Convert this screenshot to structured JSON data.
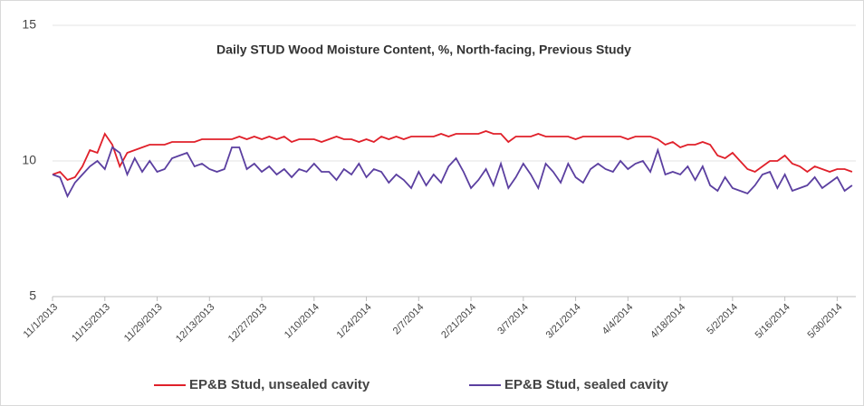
{
  "chart_data": {
    "type": "line",
    "title": "Daily STUD Wood Moisture Content, %,  North-facing, Previous Study",
    "x": [
      "11/1/2013",
      "11/3/2013",
      "11/5/2013",
      "11/7/2013",
      "11/9/2013",
      "11/11/2013",
      "11/13/2013",
      "11/15/2013",
      "11/17/2013",
      "11/19/2013",
      "11/21/2013",
      "11/23/2013",
      "11/25/2013",
      "11/27/2013",
      "11/29/2013",
      "12/1/2013",
      "12/3/2013",
      "12/5/2013",
      "12/7/2013",
      "12/9/2013",
      "12/11/2013",
      "12/13/2013",
      "12/15/2013",
      "12/17/2013",
      "12/19/2013",
      "12/21/2013",
      "12/23/2013",
      "12/25/2013",
      "12/27/2013",
      "12/29/2013",
      "12/31/2013",
      "1/2/2014",
      "1/4/2014",
      "1/6/2014",
      "1/8/2014",
      "1/10/2014",
      "1/12/2014",
      "1/14/2014",
      "1/16/2014",
      "1/18/2014",
      "1/20/2014",
      "1/22/2014",
      "1/24/2014",
      "1/26/2014",
      "1/28/2014",
      "1/30/2014",
      "2/1/2014",
      "2/3/2014",
      "2/5/2014",
      "2/7/2014",
      "2/9/2014",
      "2/11/2014",
      "2/13/2014",
      "2/15/2014",
      "2/17/2014",
      "2/19/2014",
      "2/21/2014",
      "2/23/2014",
      "2/25/2014",
      "2/27/2014",
      "3/1/2014",
      "3/3/2014",
      "3/5/2014",
      "3/7/2014",
      "3/9/2014",
      "3/11/2014",
      "3/13/2014",
      "3/15/2014",
      "3/17/2014",
      "3/19/2014",
      "3/21/2014",
      "3/23/2014",
      "3/25/2014",
      "3/27/2014",
      "3/29/2014",
      "3/31/2014",
      "4/2/2014",
      "4/4/2014",
      "4/6/2014",
      "4/8/2014",
      "4/10/2014",
      "4/12/2014",
      "4/14/2014",
      "4/16/2014",
      "4/18/2014",
      "4/20/2014",
      "4/22/2014",
      "4/24/2014",
      "4/26/2014",
      "4/28/2014",
      "4/30/2014",
      "5/2/2014",
      "5/4/2014",
      "5/6/2014",
      "5/8/2014",
      "5/10/2014",
      "5/12/2014",
      "5/14/2014",
      "5/16/2014",
      "5/18/2014",
      "5/20/2014",
      "5/22/2014",
      "5/24/2014",
      "5/26/2014",
      "5/28/2014",
      "5/30/2014",
      "6/1/2014",
      "6/3/2014"
    ],
    "series": [
      {
        "name": "EP&B Stud, unsealed cavity",
        "color": "#e0202a",
        "values": [
          9.5,
          9.6,
          9.3,
          9.4,
          9.8,
          10.4,
          10.3,
          11.0,
          10.6,
          9.8,
          10.3,
          10.4,
          10.5,
          10.6,
          10.6,
          10.6,
          10.7,
          10.7,
          10.7,
          10.7,
          10.8,
          10.8,
          10.8,
          10.8,
          10.8,
          10.9,
          10.8,
          10.9,
          10.8,
          10.9,
          10.8,
          10.9,
          10.7,
          10.8,
          10.8,
          10.8,
          10.7,
          10.8,
          10.9,
          10.8,
          10.8,
          10.7,
          10.8,
          10.7,
          10.9,
          10.8,
          10.9,
          10.8,
          10.9,
          10.9,
          10.9,
          10.9,
          11.0,
          10.9,
          11.0,
          11.0,
          11.0,
          11.0,
          11.1,
          11.0,
          11.0,
          10.7,
          10.9,
          10.9,
          10.9,
          11.0,
          10.9,
          10.9,
          10.9,
          10.9,
          10.8,
          10.9,
          10.9,
          10.9,
          10.9,
          10.9,
          10.9,
          10.8,
          10.9,
          10.9,
          10.9,
          10.8,
          10.6,
          10.7,
          10.5,
          10.6,
          10.6,
          10.7,
          10.6,
          10.2,
          10.1,
          10.3,
          10.0,
          9.7,
          9.6,
          9.8,
          10.0,
          10.0,
          10.2,
          9.9,
          9.8,
          9.6,
          9.8,
          9.7,
          9.6,
          9.7,
          9.7,
          9.6
        ]
      },
      {
        "name": "EP&B Stud, sealed cavity",
        "color": "#5b3fa0",
        "values": [
          9.5,
          9.4,
          8.7,
          9.2,
          9.5,
          9.8,
          10.0,
          9.7,
          10.5,
          10.3,
          9.5,
          10.1,
          9.6,
          10.0,
          9.6,
          9.7,
          10.1,
          10.2,
          10.3,
          9.8,
          9.9,
          9.7,
          9.6,
          9.7,
          10.5,
          10.5,
          9.7,
          9.9,
          9.6,
          9.8,
          9.5,
          9.7,
          9.4,
          9.7,
          9.6,
          9.9,
          9.6,
          9.6,
          9.3,
          9.7,
          9.5,
          9.9,
          9.4,
          9.7,
          9.6,
          9.2,
          9.5,
          9.3,
          9.0,
          9.6,
          9.1,
          9.5,
          9.2,
          9.8,
          10.1,
          9.6,
          9.0,
          9.3,
          9.7,
          9.1,
          9.9,
          9.0,
          9.4,
          9.9,
          9.5,
          9.0,
          9.9,
          9.6,
          9.2,
          9.9,
          9.4,
          9.2,
          9.7,
          9.9,
          9.7,
          9.6,
          10.0,
          9.7,
          9.9,
          10.0,
          9.6,
          10.4,
          9.5,
          9.6,
          9.5,
          9.8,
          9.3,
          9.8,
          9.1,
          8.9,
          9.4,
          9.0,
          8.9,
          8.8,
          9.1,
          9.5,
          9.6,
          9.0,
          9.5,
          8.9,
          9.0,
          9.1,
          9.4,
          9.0,
          9.2,
          9.4,
          8.9,
          9.1
        ]
      }
    ],
    "xlim": [
      "11/1/2013",
      "6/4/2014"
    ],
    "xticks": [
      "11/1/2013",
      "11/15/2013",
      "11/29/2013",
      "12/13/2013",
      "12/27/2013",
      "1/10/2014",
      "1/24/2014",
      "2/7/2014",
      "2/21/2014",
      "3/7/2014",
      "3/21/2014",
      "4/4/2014",
      "4/18/2014",
      "5/2/2014",
      "5/16/2014",
      "5/30/2014"
    ],
    "ylim": [
      5,
      15
    ],
    "yticks": [
      5,
      10,
      15
    ],
    "grid": true,
    "legend": "bottom"
  }
}
